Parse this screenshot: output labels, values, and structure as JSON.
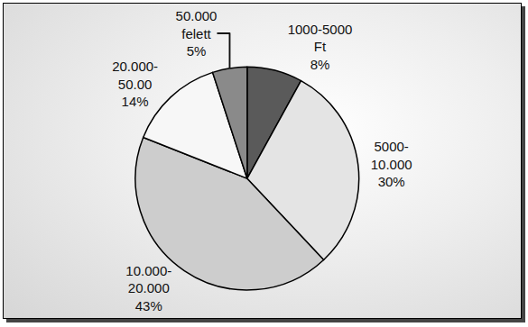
{
  "chart_data": {
    "type": "pie",
    "categories": [
      "1000-5000 Ft",
      "5000-10.000",
      "10.000-20.000",
      "20.000-50.00",
      "50.000 felett"
    ],
    "values": [
      8,
      30,
      43,
      14,
      5
    ],
    "value_labels": [
      "8%",
      "30%",
      "43%",
      "14%",
      "5%"
    ],
    "colors": [
      "#5a5a5a",
      "#e4e4e4",
      "#cdcdcd",
      "#f7f7f7",
      "#8a8a8a"
    ],
    "data_labels": true
  }
}
